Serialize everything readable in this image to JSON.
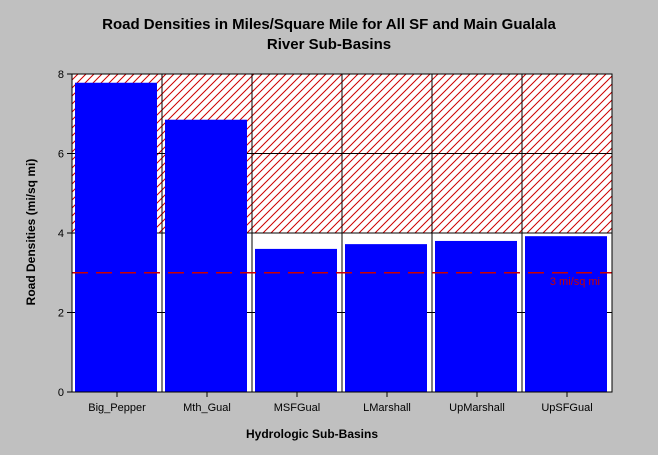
{
  "chart_data": {
    "type": "bar",
    "title_lines": [
      "Road Densities in Miles/Square Mile for All SF and Main Gualala",
      "River Sub-Basins"
    ],
    "xlabel": "Hydrologic Sub-Basins",
    "ylabel": "Road Densities (mi/sq mi)",
    "categories": [
      "Big_Pepper",
      "Mth_Gual",
      "MSFGual",
      "LMarshall",
      "UpMarshall",
      "UpSFGual"
    ],
    "values": [
      7.78,
      6.85,
      3.6,
      3.72,
      3.8,
      3.92
    ],
    "ylim": [
      0,
      8
    ],
    "yticks": [
      0,
      2,
      4,
      6,
      8
    ],
    "grid": true,
    "hatched_band": {
      "from": 4,
      "to": 8,
      "color": "#cc0000"
    },
    "reference_line": {
      "value": 3,
      "label": "3 mi/sq mi",
      "color": "#cc0000",
      "style": "dashed"
    },
    "bar_color": "#0000ff",
    "plot_background": "#ffffff",
    "page_background": "#c0c0c0"
  }
}
